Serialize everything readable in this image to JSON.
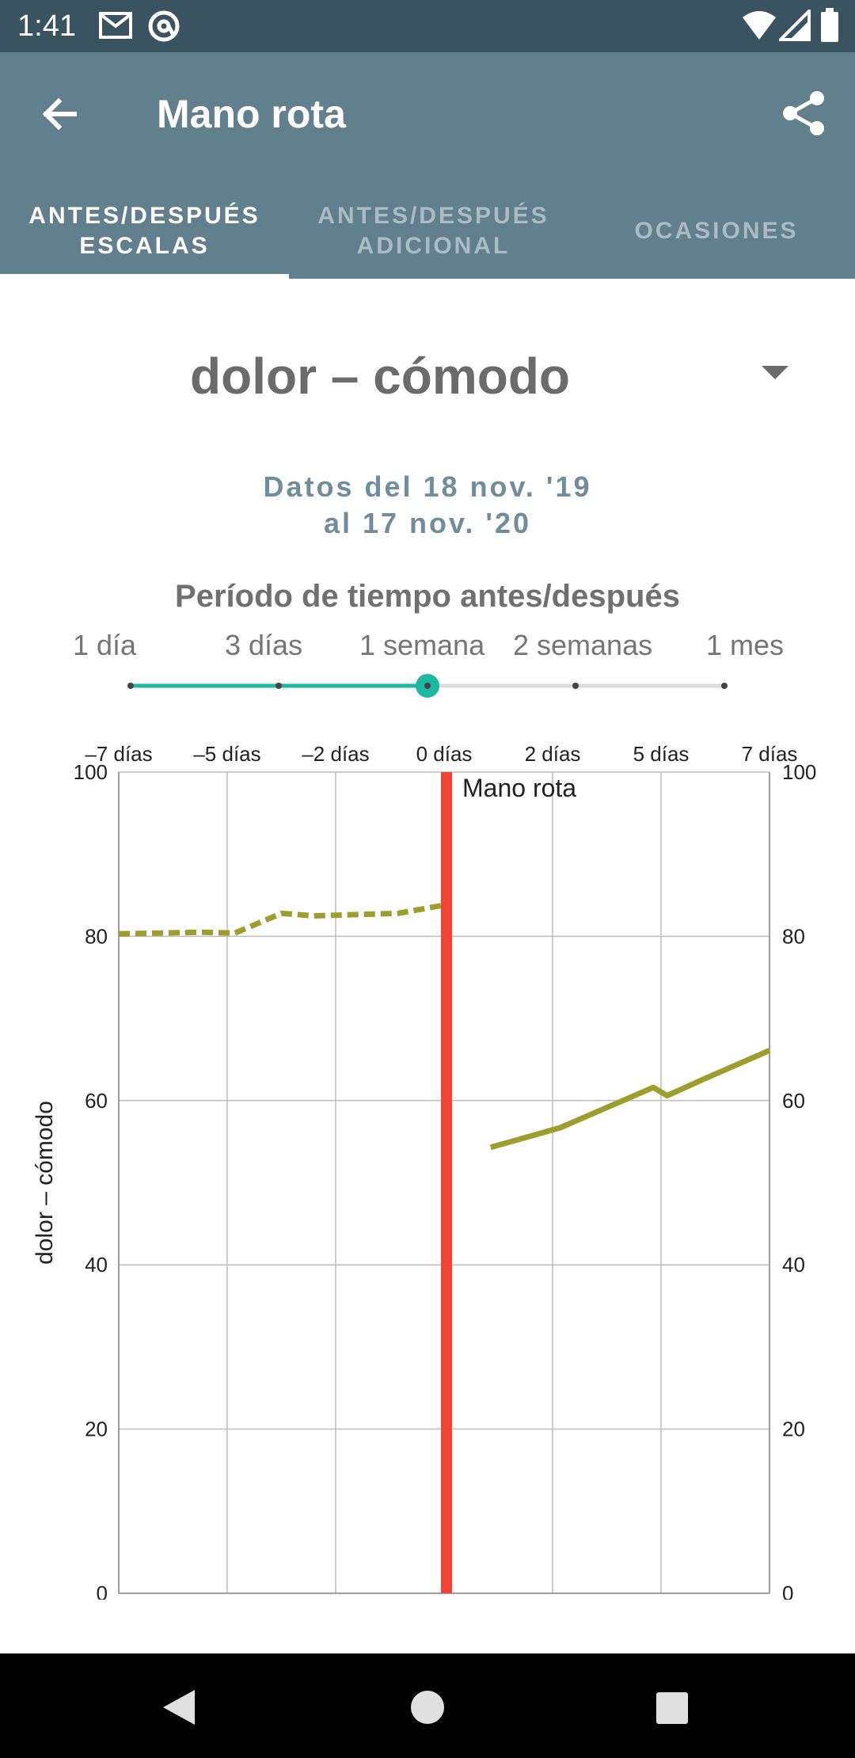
{
  "status_bar": {
    "time": "1:41",
    "icons": [
      "gmail-icon",
      "at-sign-icon",
      "wifi-icon",
      "signal-icon",
      "battery-icon"
    ]
  },
  "app_bar": {
    "title": "Mano rota",
    "back_icon": "arrow-back-icon",
    "share_icon": "share-icon",
    "color": "#627f8d"
  },
  "tabs": [
    {
      "line1": "ANTES/DESPUÉS",
      "line2": "ESCALAS",
      "active": true
    },
    {
      "line1": "ANTES/DESPUÉS",
      "line2": "ADICIONAL",
      "active": false
    },
    {
      "line1": "OCASIONES",
      "line2": "",
      "active": false
    }
  ],
  "scale_selector": {
    "selected": "dolor – cómodo"
  },
  "date_range": {
    "line1": "Datos del 18 nov. '19",
    "line2": "al 17 nov. '20"
  },
  "period": {
    "title": "Período de tiempo antes/después",
    "options": [
      "1 día",
      "3 días",
      "1 semana",
      "2 semanas",
      "1 mes"
    ],
    "selected_index": 2,
    "accent": "#1cb8a0"
  },
  "chart_data": {
    "type": "line",
    "x_tick_labels": [
      "–7 días",
      "–5 días",
      "–2 días",
      "0 días",
      "2 días",
      "5 días",
      "7 días"
    ],
    "xlim": [
      -7,
      7
    ],
    "ylim": [
      0,
      100
    ],
    "y_ticks": [
      0,
      20,
      40,
      60,
      80,
      100
    ],
    "ylabel": "dolor – cómodo",
    "event": {
      "label": "Mano rota",
      "x": 0,
      "color": "#f44336"
    },
    "series": [
      {
        "style": "dashed",
        "color": "#9e9e2e",
        "points": [
          [
            -7,
            80.3
          ],
          [
            -5.2,
            80.5
          ],
          [
            -4.5,
            80.4
          ],
          [
            -3.5,
            82.8
          ],
          [
            -2.8,
            82.5
          ],
          [
            -1,
            82.8
          ],
          [
            0,
            83.8
          ]
        ]
      },
      {
        "style": "solid",
        "color": "#9e9e2e",
        "points": [
          [
            1,
            54.3
          ],
          [
            2.5,
            56.7
          ],
          [
            4.5,
            61.6
          ],
          [
            4.8,
            60.6
          ],
          [
            5.5,
            62.4
          ],
          [
            7,
            66.1
          ]
        ]
      }
    ],
    "grid": true
  },
  "nav_bar": {
    "icons": [
      "back-triangle-icon",
      "home-circle-icon",
      "recents-square-icon"
    ]
  }
}
